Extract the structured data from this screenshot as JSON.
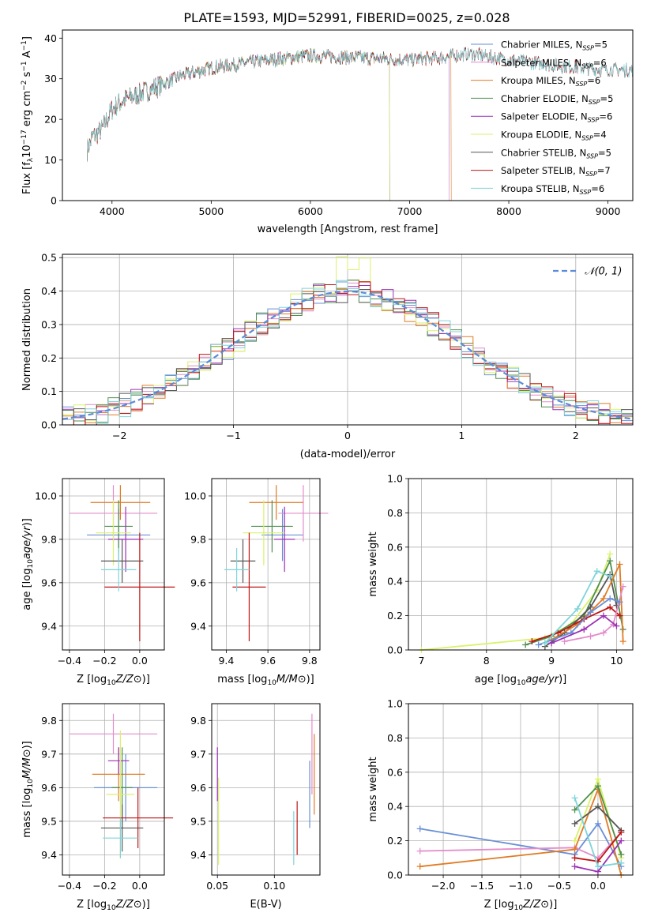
{
  "title": "PLATE=1593, MJD=52991, FIBERID=0025, z=0.028",
  "colors": {
    "chabrier_miles": "#6a8fd6",
    "salpeter_miles": "#e38ccb",
    "kroupa_miles": "#e07b24",
    "chabrier_elodie": "#4f8f4f",
    "salpeter_elodie": "#9b30b5",
    "kroupa_elodie": "#d9f26b",
    "chabrier_stelib": "#555555",
    "salpeter_stelib": "#bf1515",
    "kroupa_stelib": "#7fd4d9",
    "grid": "#b0b0b0",
    "normal_curve": "#5b8bd9"
  },
  "legend": [
    {
      "key": "chabrier_miles",
      "label": "Chabrier MILES, N",
      "sub": "SSP",
      "eq": "=5"
    },
    {
      "key": "salpeter_miles",
      "label": "Salpeter MILES, N",
      "sub": "SSP",
      "eq": "=6"
    },
    {
      "key": "kroupa_miles",
      "label": "Kroupa MILES, N",
      "sub": "SSP",
      "eq": "=6"
    },
    {
      "key": "chabrier_elodie",
      "label": "Chabrier ELODIE, N",
      "sub": "SSP",
      "eq": "=5"
    },
    {
      "key": "salpeter_elodie",
      "label": "Salpeter ELODIE, N",
      "sub": "SSP",
      "eq": "=6"
    },
    {
      "key": "kroupa_elodie",
      "label": "Kroupa ELODIE, N",
      "sub": "SSP",
      "eq": "=4"
    },
    {
      "key": "chabrier_stelib",
      "label": "Chabrier STELIB, N",
      "sub": "SSP",
      "eq": "=5"
    },
    {
      "key": "salpeter_stelib",
      "label": "Salpeter STELIB, N",
      "sub": "SSP",
      "eq": "=7"
    },
    {
      "key": "kroupa_stelib",
      "label": "Kroupa STELIB, N",
      "sub": "SSP",
      "eq": "=6"
    }
  ],
  "chart_data": [
    {
      "id": "spectrum",
      "type": "line",
      "xlabel": "wavelength [Angstrom, rest frame]",
      "ylabel_parts": [
        "Flux [f",
        "λ",
        "10",
        "−17",
        " erg cm",
        "−2",
        " s",
        "−1",
        " A",
        "−1",
        "]"
      ],
      "xlim": [
        3500,
        9250
      ],
      "ylim": [
        0,
        42
      ],
      "xticks": [
        4000,
        5000,
        6000,
        7000,
        8000,
        9000
      ],
      "yticks": [
        0,
        10,
        20,
        30,
        40
      ],
      "continuum_x": [
        3750,
        3800,
        3900,
        4000,
        4100,
        4200,
        4300,
        4500,
        4700,
        5000,
        5300,
        5600,
        6000,
        6500,
        7000,
        7300,
        7600,
        8000,
        8500,
        9000
      ],
      "continuum_y": [
        13,
        16,
        18,
        23,
        25,
        26,
        27,
        29,
        31,
        33,
        34,
        35,
        36,
        35.5,
        35,
        35.5,
        36.5,
        35,
        33.5,
        32.5
      ],
      "series_ends": [
        {
          "key": "chabrier_miles",
          "end": 7400
        },
        {
          "key": "salpeter_miles",
          "end": 7400
        },
        {
          "key": "kroupa_miles",
          "end": 7420
        },
        {
          "key": "chabrier_elodie",
          "end": 6800
        },
        {
          "key": "salpeter_elodie",
          "end": 6800
        },
        {
          "key": "kroupa_elodie",
          "end": 6800
        },
        {
          "key": "chabrier_stelib",
          "end": 9250
        },
        {
          "key": "salpeter_stelib",
          "end": 9250
        },
        {
          "key": "kroupa_stelib",
          "end": 9250
        }
      ]
    },
    {
      "id": "residuals",
      "type": "histogram",
      "xlabel": "(data-model)/error",
      "ylabel": "Normed distribution",
      "xlim": [
        -2.5,
        2.5
      ],
      "ylim": [
        0,
        0.51
      ],
      "xticks": [
        -2,
        -1,
        0,
        1,
        2
      ],
      "yticks": [
        0.0,
        0.1,
        0.2,
        0.3,
        0.4,
        0.5
      ],
      "bin_width": 0.1,
      "legend_label": "𝒩(0, 1)",
      "normal": {
        "mean": 0,
        "sigma": 1
      }
    },
    {
      "id": "age_vs_Z",
      "type": "errorbar",
      "xlabel": "Z [log10(Z/Z⊙)]",
      "ylabel": "age  [log10(age/yr)]",
      "xlim": [
        -0.44,
        0.14
      ],
      "ylim": [
        9.29,
        10.08
      ],
      "xticks": [
        -0.4,
        -0.2,
        0.0
      ],
      "yticks": [
        9.4,
        9.6,
        9.8,
        10.0
      ],
      "points": [
        {
          "key": "chabrier_miles",
          "x": -0.12,
          "y": 9.82,
          "xe": 0.18,
          "ye": 0.12
        },
        {
          "key": "salpeter_miles",
          "x": -0.15,
          "y": 9.92,
          "xe": 0.25,
          "ye": 0.13
        },
        {
          "key": "kroupa_miles",
          "x": -0.11,
          "y": 9.97,
          "xe": 0.17,
          "ye": 0.08
        },
        {
          "key": "chabrier_elodie",
          "x": -0.12,
          "y": 9.86,
          "xe": 0.08,
          "ye": 0.12
        },
        {
          "key": "salpeter_elodie",
          "x": -0.08,
          "y": 9.8,
          "xe": 0.1,
          "ye": 0.15
        },
        {
          "key": "kroupa_elodie",
          "x": -0.15,
          "y": 9.83,
          "xe": 0.1,
          "ye": 0.15
        },
        {
          "key": "chabrier_stelib",
          "x": -0.1,
          "y": 9.7,
          "xe": 0.12,
          "ye": 0.1
        },
        {
          "key": "salpeter_stelib",
          "x": 0.0,
          "y": 9.58,
          "xe": 0.2,
          "ye": 0.25
        },
        {
          "key": "kroupa_stelib",
          "x": -0.12,
          "y": 9.66,
          "xe": 0.1,
          "ye": 0.1
        }
      ]
    },
    {
      "id": "age_vs_mass",
      "type": "errorbar",
      "xlabel": "mass [log10(M/M⊙)]",
      "xlim": [
        9.33,
        9.85
      ],
      "ylim": [
        9.29,
        10.08
      ],
      "xticks": [
        9.4,
        9.6,
        9.8
      ],
      "yticks": [
        9.4,
        9.6,
        9.8,
        10.0
      ],
      "points": [
        {
          "key": "chabrier_miles",
          "x": 9.67,
          "y": 9.82,
          "xe": 0.1,
          "ye": 0.12
        },
        {
          "key": "salpeter_miles",
          "x": 9.77,
          "y": 9.92,
          "xe": 0.12,
          "ye": 0.13
        },
        {
          "key": "kroupa_miles",
          "x": 9.64,
          "y": 9.97,
          "xe": 0.13,
          "ye": 0.08
        },
        {
          "key": "chabrier_elodie",
          "x": 9.62,
          "y": 9.86,
          "xe": 0.1,
          "ye": 0.12
        },
        {
          "key": "salpeter_elodie",
          "x": 9.68,
          "y": 9.8,
          "xe": 0.05,
          "ye": 0.15
        },
        {
          "key": "kroupa_elodie",
          "x": 9.58,
          "y": 9.83,
          "xe": 0.1,
          "ye": 0.15
        },
        {
          "key": "chabrier_stelib",
          "x": 9.48,
          "y": 9.7,
          "xe": 0.06,
          "ye": 0.1
        },
        {
          "key": "salpeter_stelib",
          "x": 9.51,
          "y": 9.58,
          "xe": 0.08,
          "ye": 0.25
        },
        {
          "key": "kroupa_stelib",
          "x": 9.45,
          "y": 9.66,
          "xe": 0.06,
          "ye": 0.1
        }
      ]
    },
    {
      "id": "weight_vs_age",
      "type": "line",
      "xlabel": "age  [log10(age/yr)]",
      "ylabel": "mass weight",
      "xlim": [
        6.8,
        10.25
      ],
      "ylim": [
        0,
        1
      ],
      "xticks": [
        7,
        8,
        9,
        10
      ],
      "yticks": [
        0.0,
        0.2,
        0.4,
        0.6,
        0.8,
        1.0
      ],
      "series": [
        {
          "key": "kroupa_elodie",
          "x": [
            7.0,
            8.9,
            9.3,
            9.7,
            9.9
          ],
          "y": [
            0.0,
            0.07,
            0.15,
            0.35,
            0.56
          ]
        },
        {
          "key": "chabrier_elodie",
          "x": [
            8.6,
            9.0,
            9.5,
            9.9,
            10.1
          ],
          "y": [
            0.03,
            0.08,
            0.2,
            0.52,
            0.12
          ]
        },
        {
          "key": "chabrier_stelib",
          "x": [
            8.9,
            9.2,
            9.6,
            9.9,
            10.0
          ],
          "y": [
            0.02,
            0.1,
            0.25,
            0.44,
            0.26
          ]
        },
        {
          "key": "kroupa_miles",
          "x": [
            9.0,
            9.4,
            9.8,
            10.05,
            10.1
          ],
          "y": [
            0.06,
            0.15,
            0.3,
            0.5,
            0.05
          ]
        },
        {
          "key": "salpeter_stelib",
          "x": [
            8.7,
            9.1,
            9.5,
            9.9,
            10.05
          ],
          "y": [
            0.05,
            0.1,
            0.18,
            0.25,
            0.2
          ]
        },
        {
          "key": "salpeter_miles",
          "x": [
            9.2,
            9.6,
            9.8,
            9.95,
            10.1
          ],
          "y": [
            0.05,
            0.08,
            0.1,
            0.15,
            0.37
          ]
        },
        {
          "key": "chabrier_miles",
          "x": [
            8.8,
            9.3,
            9.6,
            9.9,
            10.05
          ],
          "y": [
            0.03,
            0.1,
            0.22,
            0.3,
            0.28
          ]
        },
        {
          "key": "salpeter_elodie",
          "x": [
            9.0,
            9.5,
            9.8,
            10.0
          ],
          "y": [
            0.04,
            0.12,
            0.2,
            0.14
          ]
        },
        {
          "key": "kroupa_stelib",
          "x": [
            8.9,
            9.4,
            9.7,
            9.9
          ],
          "y": [
            0.04,
            0.24,
            0.46,
            0.43
          ]
        }
      ]
    },
    {
      "id": "mass_vs_Z",
      "type": "errorbar",
      "xlabel": "Z [log10(Z/Z⊙)]",
      "ylabel": "mass [log10(M/M⊙)]",
      "xlim": [
        -0.44,
        0.14
      ],
      "ylim": [
        9.34,
        9.85
      ],
      "xticks": [
        -0.4,
        -0.2,
        0.0
      ],
      "yticks": [
        9.4,
        9.5,
        9.6,
        9.7,
        9.8
      ],
      "points": [
        {
          "key": "chabrier_miles",
          "x": -0.08,
          "y": 9.6,
          "xe": 0.18,
          "ye": 0.1
        },
        {
          "key": "salpeter_miles",
          "x": -0.15,
          "y": 9.76,
          "xe": 0.25,
          "ye": 0.06
        },
        {
          "key": "kroupa_miles",
          "x": -0.12,
          "y": 9.64,
          "xe": 0.15,
          "ye": 0.08
        },
        {
          "key": "chabrier_elodie",
          "x": -0.1,
          "y": 9.6,
          "xe": 0.06,
          "ye": 0.12
        },
        {
          "key": "salpeter_elodie",
          "x": -0.12,
          "y": 9.68,
          "xe": 0.06,
          "ye": 0.04
        },
        {
          "key": "kroupa_elodie",
          "x": -0.11,
          "y": 9.58,
          "xe": 0.08,
          "ye": 0.19
        },
        {
          "key": "chabrier_stelib",
          "x": -0.1,
          "y": 9.48,
          "xe": 0.12,
          "ye": 0.07
        },
        {
          "key": "salpeter_stelib",
          "x": -0.01,
          "y": 9.51,
          "xe": 0.2,
          "ye": 0.09
        },
        {
          "key": "kroupa_stelib",
          "x": -0.11,
          "y": 9.45,
          "xe": 0.1,
          "ye": 0.06
        }
      ]
    },
    {
      "id": "mass_vs_ebv",
      "type": "errorbar",
      "xlabel": "E(B-V)",
      "xlim": [
        0.045,
        0.14
      ],
      "ylim": [
        9.34,
        9.85
      ],
      "xticks": [
        0.05,
        0.1
      ],
      "yticks": [
        9.4,
        9.5,
        9.6,
        9.7,
        9.8
      ],
      "points": [
        {
          "key": "salpeter_elodie",
          "x": 0.05,
          "y": 9.64,
          "xe": 0,
          "ye": 0.08
        },
        {
          "key": "kroupa_elodie",
          "x": 0.051,
          "y": 9.5,
          "xe": 0,
          "ye": 0.13
        },
        {
          "key": "kroupa_stelib",
          "x": 0.117,
          "y": 9.45,
          "xe": 0,
          "ye": 0.08
        },
        {
          "key": "salpeter_stelib",
          "x": 0.12,
          "y": 9.48,
          "xe": 0,
          "ye": 0.08
        },
        {
          "key": "chabrier_miles",
          "x": 0.131,
          "y": 9.58,
          "xe": 0,
          "ye": 0.1
        },
        {
          "key": "salpeter_miles",
          "x": 0.133,
          "y": 9.7,
          "xe": 0,
          "ye": 0.12
        },
        {
          "key": "kroupa_miles",
          "x": 0.135,
          "y": 9.64,
          "xe": 0,
          "ye": 0.12
        }
      ]
    },
    {
      "id": "weight_vs_Z",
      "type": "line",
      "xlabel": "Z [log10(Z/Z⊙)]",
      "ylabel": "mass weight",
      "xlim": [
        -2.45,
        0.45
      ],
      "ylim": [
        0,
        1
      ],
      "xticks": [
        -2.0,
        -1.5,
        -1.0,
        -0.5,
        0.0
      ],
      "yticks": [
        0.0,
        0.2,
        0.4,
        0.6,
        0.8,
        1.0
      ],
      "series": [
        {
          "key": "chabrier_miles",
          "x": [
            -2.3,
            -0.3,
            0.0,
            0.3
          ],
          "y": [
            0.27,
            0.12,
            0.3,
            0.05
          ]
        },
        {
          "key": "salpeter_miles",
          "x": [
            -2.3,
            -0.3,
            0.0,
            0.3
          ],
          "y": [
            0.14,
            0.16,
            0.1,
            0.25
          ]
        },
        {
          "key": "kroupa_miles",
          "x": [
            -2.3,
            -0.3,
            0.0,
            0.3
          ],
          "y": [
            0.05,
            0.15,
            0.5,
            0.0
          ]
        },
        {
          "key": "kroupa_elodie",
          "x": [
            -0.3,
            0.0,
            0.3
          ],
          "y": [
            0.2,
            0.56,
            0.1
          ]
        },
        {
          "key": "chabrier_elodie",
          "x": [
            -0.3,
            0.0,
            0.3
          ],
          "y": [
            0.38,
            0.52,
            0.12
          ]
        },
        {
          "key": "salpeter_elodie",
          "x": [
            -0.3,
            0.0,
            0.3
          ],
          "y": [
            0.05,
            0.02,
            0.2
          ]
        },
        {
          "key": "chabrier_stelib",
          "x": [
            -0.3,
            0.0,
            0.3
          ],
          "y": [
            0.3,
            0.4,
            0.26
          ]
        },
        {
          "key": "salpeter_stelib",
          "x": [
            -0.3,
            0.0,
            0.3
          ],
          "y": [
            0.1,
            0.08,
            0.25
          ]
        },
        {
          "key": "kroupa_stelib",
          "x": [
            -0.3,
            0.0,
            0.3
          ],
          "y": [
            0.45,
            0.05,
            0.07
          ]
        }
      ]
    }
  ]
}
